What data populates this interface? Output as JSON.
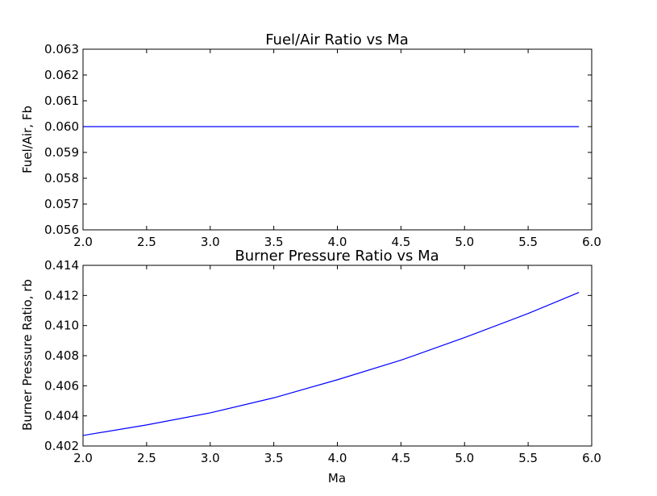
{
  "chart_data": [
    {
      "type": "line",
      "title": "Fuel/Air Ratio vs Ma",
      "xlabel": "",
      "ylabel": "Fuel/Air, Fb",
      "xlim": [
        2.0,
        6.0
      ],
      "ylim": [
        0.056,
        0.063
      ],
      "xticks": [
        "2.0",
        "2.5",
        "3.0",
        "3.5",
        "4.0",
        "4.5",
        "5.0",
        "5.5",
        "6.0"
      ],
      "yticks": [
        "0.056",
        "0.057",
        "0.058",
        "0.059",
        "0.060",
        "0.061",
        "0.062",
        "0.063"
      ],
      "grid": false,
      "color": "#0000ff",
      "series": [
        {
          "x": [
            2.0,
            2.5,
            3.0,
            3.5,
            4.0,
            4.5,
            5.0,
            5.5,
            5.9
          ],
          "y": [
            0.06,
            0.06,
            0.06,
            0.06,
            0.06,
            0.06,
            0.06,
            0.06,
            0.06
          ]
        }
      ]
    },
    {
      "type": "line",
      "title": "Burner Pressure Ratio vs Ma",
      "xlabel": "Ma",
      "ylabel": "Burner Pressure Ratio, rb",
      "xlim": [
        2.0,
        6.0
      ],
      "ylim": [
        0.402,
        0.414
      ],
      "xticks": [
        "2.0",
        "2.5",
        "3.0",
        "3.5",
        "4.0",
        "4.5",
        "5.0",
        "5.5",
        "6.0"
      ],
      "yticks": [
        "0.402",
        "0.404",
        "0.406",
        "0.408",
        "0.410",
        "0.412",
        "0.414"
      ],
      "grid": false,
      "color": "#0000ff",
      "series": [
        {
          "x": [
            2.0,
            2.5,
            3.0,
            3.5,
            4.0,
            4.5,
            5.0,
            5.5,
            5.9
          ],
          "y": [
            0.4027,
            0.4034,
            0.4042,
            0.4052,
            0.4064,
            0.4077,
            0.4092,
            0.4108,
            0.4122
          ]
        }
      ]
    }
  ]
}
